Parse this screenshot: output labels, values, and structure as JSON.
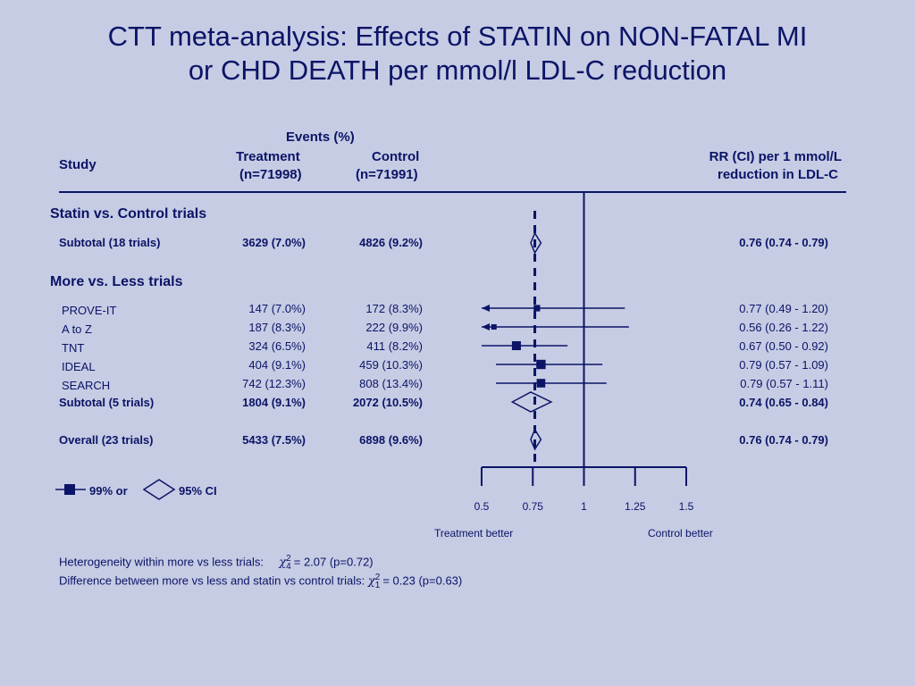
{
  "title": {
    "line1": "CTT meta-analysis: Effects of STATIN on NON-FATAL MI",
    "line2": "or CHD DEATH per mmol/l LDL-C reduction"
  },
  "header": {
    "study": "Study",
    "events": "Events (%)",
    "treatment": "Treatment",
    "treatment_n": "(n=71998)",
    "control": "Control",
    "control_n": "(n=71991)",
    "rr_line1": "RR (CI) per 1 mmol/L",
    "rr_line2": "reduction in LDL-C"
  },
  "sections": {
    "statin": "Statin vs. Control trials",
    "more_less": "More vs. Less trials"
  },
  "rows": [
    {
      "study": "Subtotal (18 trials)",
      "treatment": "3629 (7.0%)",
      "control": "4826 (9.2%)",
      "rr": "0.76 (0.74 - 0.79)",
      "bold": true
    },
    {
      "study": "PROVE-IT",
      "treatment": "147 (7.0%)",
      "control": "172 (8.3%)",
      "rr": "0.77 (0.49 - 1.20)",
      "bold": false
    },
    {
      "study": "A to Z",
      "treatment": "187 (8.3%)",
      "control": "222 (9.9%)",
      "rr": "0.56 (0.26 - 1.22)",
      "bold": false
    },
    {
      "study": "TNT",
      "treatment": "324 (6.5%)",
      "control": "411 (8.2%)",
      "rr": "0.67 (0.50 - 0.92)",
      "bold": false
    },
    {
      "study": "IDEAL",
      "treatment": "404 (9.1%)",
      "control": "459 (10.3%)",
      "rr": "0.79 (0.57 - 1.09)",
      "bold": false
    },
    {
      "study": "SEARCH",
      "treatment": "742 (12.3%)",
      "control": "808 (13.4%)",
      "rr": "0.79 (0.57 - 1.11)",
      "bold": false
    },
    {
      "study": "Subtotal (5 trials)",
      "treatment": "1804 (9.1%)",
      "control": "2072 (10.5%)",
      "rr": "0.74 (0.65 - 0.84)",
      "bold": true
    },
    {
      "study": "Overall (23 trials)",
      "treatment": "5433 (7.5%)",
      "control": "6898 (9.6%)",
      "rr": "0.76 (0.74 - 0.79)",
      "bold": true
    }
  ],
  "legend": {
    "ci99": "99% or",
    "ci95": "95% CI"
  },
  "axis": {
    "ticks": [
      "0.5",
      "0.75",
      "1",
      "1.25",
      "1.5"
    ],
    "left_label": "Treatment better",
    "right_label": "Control better"
  },
  "footer": {
    "het_label": "Heterogeneity within more vs less trials:",
    "het_chi": "χ",
    "het_sup": "2",
    "het_sub": "4",
    "het_value": "= 2.07 (p=0.72)",
    "diff_label": "Difference between more vs less and statin vs control trials:",
    "diff_chi": "χ",
    "diff_sup": "2",
    "diff_sub": "1",
    "diff_value": "= 0.23 (p=0.63)"
  },
  "colors": {
    "background": "#c6cce4",
    "ink": "#0b1466"
  },
  "chart_data": {
    "type": "forest",
    "x_scale": "linear",
    "xlim": [
      0.5,
      1.5
    ],
    "x_ticks": [
      0.5,
      0.75,
      1,
      1.25,
      1.5
    ],
    "reference_line": 1,
    "overall_dashed_line": 0.76,
    "xlabel_left": "Treatment better",
    "xlabel_right": "Control better",
    "studies": [
      {
        "name": "Subtotal (18 trials)",
        "kind": "diamond",
        "rr": 0.76,
        "lo": 0.74,
        "hi": 0.79
      },
      {
        "name": "PROVE-IT",
        "kind": "square",
        "rr": 0.77,
        "lo_99": 0.49,
        "hi_99": 1.2,
        "weight": 0.4
      },
      {
        "name": "A to Z",
        "kind": "square",
        "rr": 0.56,
        "lo_99": 0.26,
        "hi_99": 1.22,
        "weight": 0.25
      },
      {
        "name": "TNT",
        "kind": "square",
        "rr": 0.67,
        "lo_99": 0.5,
        "hi_99": 0.92,
        "weight": 0.75
      },
      {
        "name": "IDEAL",
        "kind": "square",
        "rr": 0.79,
        "lo_99": 0.57,
        "hi_99": 1.09,
        "weight": 0.8
      },
      {
        "name": "SEARCH",
        "kind": "square",
        "rr": 0.79,
        "lo_99": 0.57,
        "hi_99": 1.11,
        "weight": 0.7
      },
      {
        "name": "Subtotal (5 trials)",
        "kind": "diamond",
        "rr": 0.74,
        "lo": 0.65,
        "hi": 0.84
      },
      {
        "name": "Overall (23 trials)",
        "kind": "diamond",
        "rr": 0.76,
        "lo": 0.74,
        "hi": 0.79
      }
    ]
  }
}
